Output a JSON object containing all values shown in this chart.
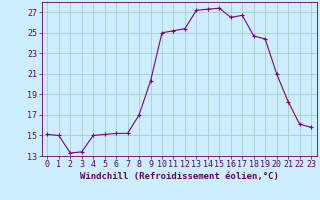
{
  "hours": [
    0,
    1,
    2,
    3,
    4,
    5,
    6,
    7,
    8,
    9,
    10,
    11,
    12,
    13,
    14,
    15,
    16,
    17,
    18,
    19,
    20,
    21,
    22,
    23
  ],
  "values": [
    15.1,
    15.0,
    13.3,
    13.4,
    15.0,
    15.1,
    15.2,
    15.2,
    17.0,
    20.3,
    25.0,
    25.2,
    25.4,
    27.2,
    27.3,
    27.4,
    26.5,
    26.7,
    24.7,
    24.4,
    21.0,
    18.3,
    16.1,
    15.8
  ],
  "line_color": "#800080",
  "marker": "+",
  "marker_size": 3,
  "bg_color": "#cceeff",
  "grid_color": "#aacccc",
  "xlabel": "Windchill (Refroidissement éolien,°C)",
  "ylim": [
    13,
    28
  ],
  "xlim": [
    -0.5,
    23.5
  ],
  "yticks": [
    13,
    15,
    17,
    19,
    21,
    23,
    25,
    27
  ],
  "xticks": [
    0,
    1,
    2,
    3,
    4,
    5,
    6,
    7,
    8,
    9,
    10,
    11,
    12,
    13,
    14,
    15,
    16,
    17,
    18,
    19,
    20,
    21,
    22,
    23
  ],
  "tick_color": "#660066",
  "label_fontsize": 6.5,
  "tick_fontsize": 6
}
